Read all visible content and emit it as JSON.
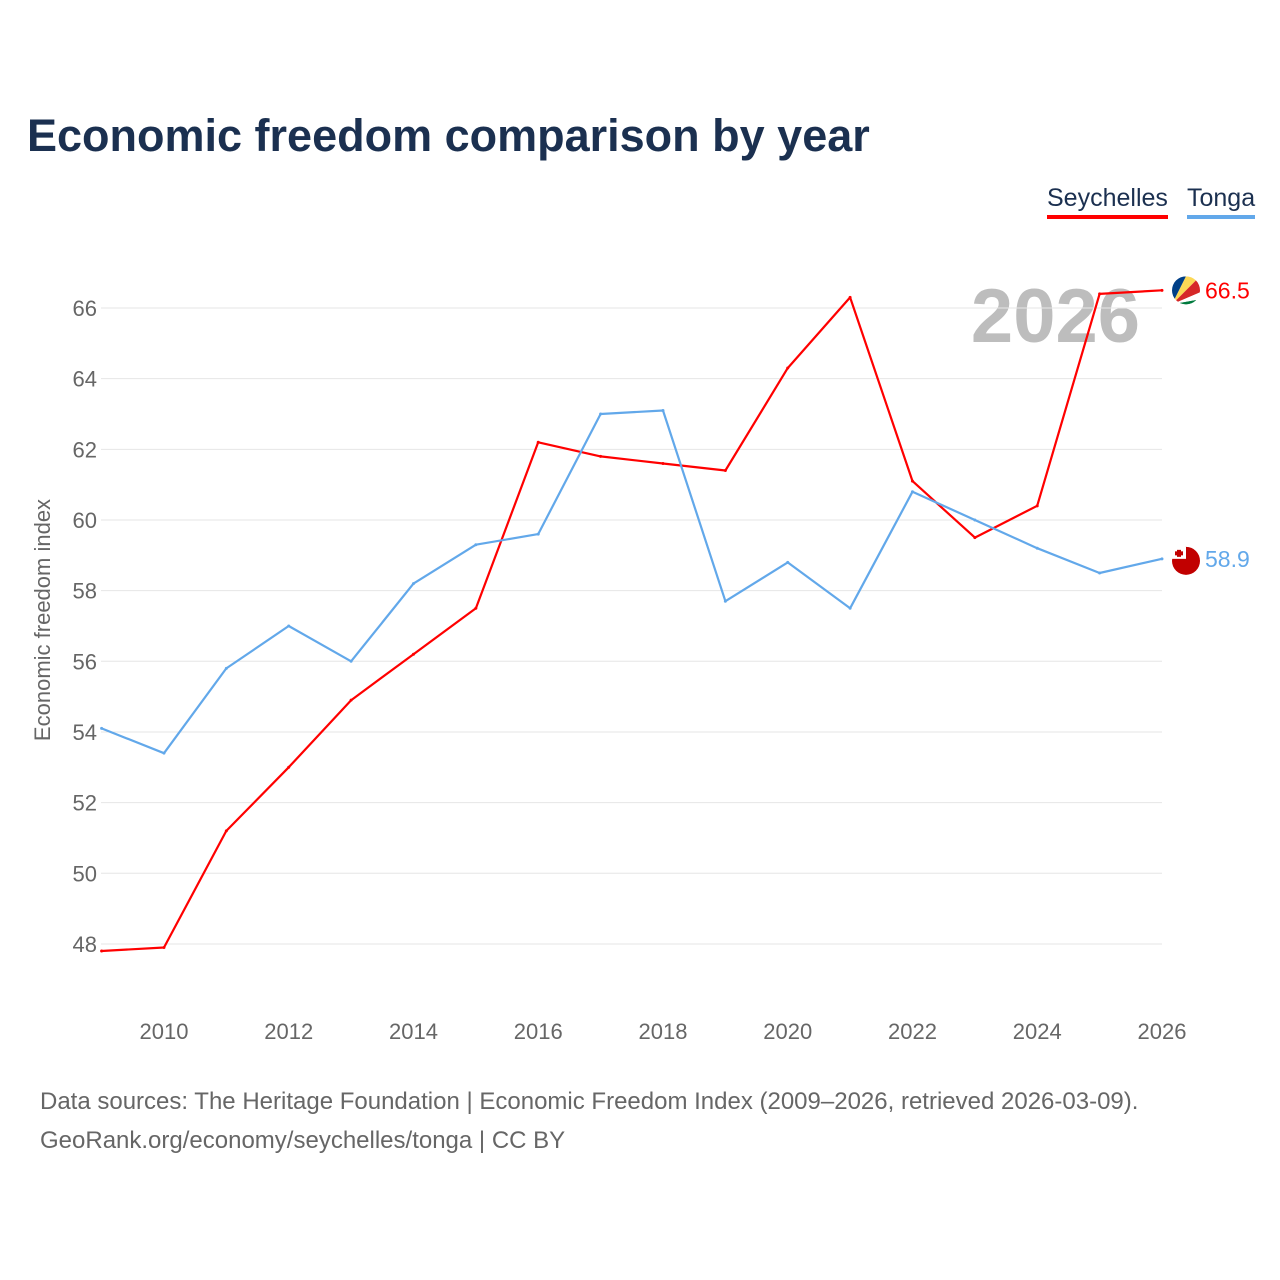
{
  "chart_data": {
    "type": "line",
    "title": "Economic freedom comparison by year",
    "xlabel": "",
    "ylabel": "Economic freedom index",
    "x": [
      2009,
      2010,
      2011,
      2012,
      2013,
      2014,
      2015,
      2016,
      2017,
      2018,
      2019,
      2020,
      2021,
      2022,
      2023,
      2024,
      2025,
      2026
    ],
    "xticks": [
      "2010",
      "2012",
      "2014",
      "2016",
      "2018",
      "2020",
      "2022",
      "2024",
      "2026"
    ],
    "yticks": [
      "48",
      "50",
      "52",
      "54",
      "56",
      "58",
      "60",
      "62",
      "64",
      "66"
    ],
    "ylim": [
      47,
      67.5
    ],
    "xlim": [
      2009,
      2026
    ],
    "grid": true,
    "legend_position": "top-right",
    "year_watermark": "2026",
    "series": [
      {
        "name": "Seychelles",
        "color": "#ff0000",
        "end_label": "66.5",
        "values": [
          47.8,
          47.9,
          51.2,
          53.0,
          54.9,
          56.2,
          57.5,
          62.2,
          61.8,
          61.6,
          61.4,
          64.3,
          66.3,
          61.1,
          59.5,
          60.4,
          66.4,
          66.5
        ]
      },
      {
        "name": "Tonga",
        "color": "#62a8ea",
        "end_label": "58.9",
        "values": [
          54.1,
          53.4,
          55.8,
          57.0,
          56.0,
          58.2,
          59.3,
          59.6,
          63.0,
          63.1,
          57.7,
          58.8,
          57.5,
          60.8,
          60.0,
          59.2,
          58.5,
          58.9
        ]
      }
    ]
  },
  "footer": {
    "line1": "Data sources: The Heritage Foundation | Economic Freedom Index (2009–2026, retrieved 2026-03-09).",
    "line2": "GeoRank.org/economy/seychelles/tonga | CC BY"
  }
}
